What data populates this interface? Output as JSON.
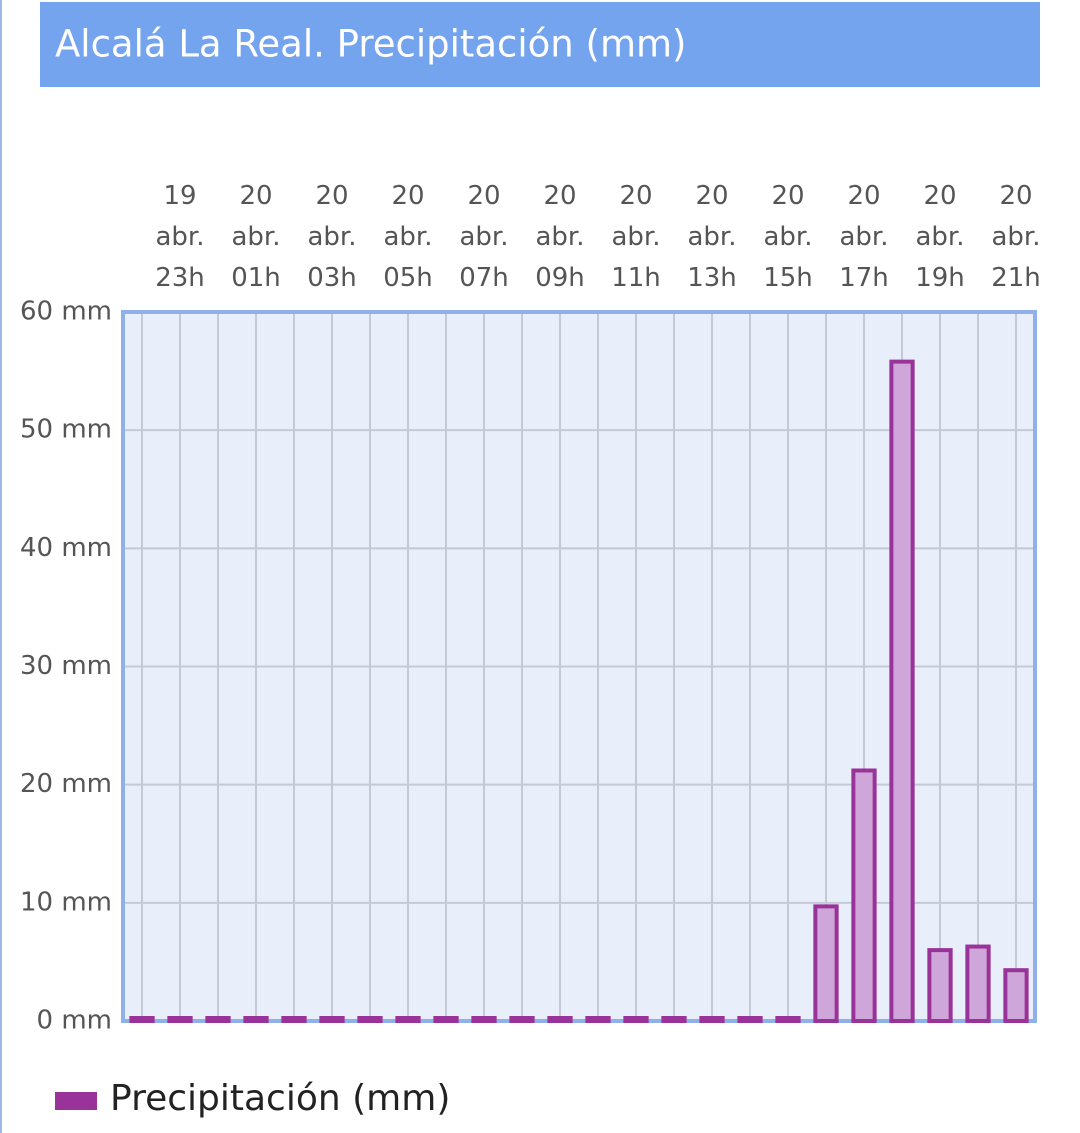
{
  "chart_data": {
    "type": "bar",
    "title": "Alcalá La Real. Precipitación (mm)",
    "categories": [
      null,
      "19 abr. 23h",
      null,
      "20 abr. 01h",
      null,
      "20 abr. 03h",
      null,
      "20 abr. 05h",
      null,
      "20 abr. 07h",
      null,
      "20 abr. 09h",
      null,
      "20 abr. 11h",
      null,
      "20 abr. 13h",
      null,
      "20 abr. 15h",
      null,
      "20 abr. 17h",
      null,
      "20 abr. 19h",
      null,
      "20 abr. 21h"
    ],
    "series": [
      {
        "name": "Precipitación (mm)",
        "color": "#993399",
        "values": [
          0,
          0,
          0,
          0,
          0,
          0,
          0,
          0,
          0,
          0,
          0,
          0,
          0,
          0,
          0,
          0,
          0,
          0,
          9.7,
          21.2,
          55.8,
          6.0,
          6.3,
          4.3
        ]
      }
    ],
    "ylim": [
      0,
      60
    ],
    "yticks": [
      {
        "value": 0,
        "label": "0 mm"
      },
      {
        "value": 10,
        "label": "10 mm"
      },
      {
        "value": 20,
        "label": "20 mm"
      },
      {
        "value": 30,
        "label": "30 mm"
      },
      {
        "value": 40,
        "label": "40 mm"
      },
      {
        "value": 50,
        "label": "50 mm"
      },
      {
        "value": 60,
        "label": "60 mm"
      }
    ],
    "grid": true
  }
}
